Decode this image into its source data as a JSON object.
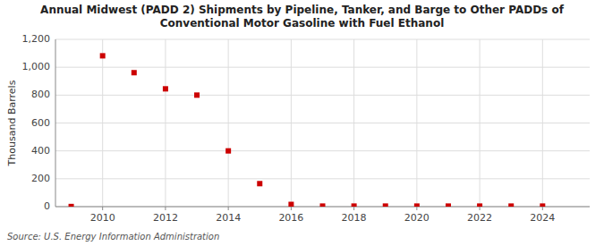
{
  "chart_data": {
    "type": "scatter",
    "title": "Annual Midwest (PADD 2) Shipments by Pipeline, Tanker, and Barge to Other PADDs of\nConventional Motor Gasoline with Fuel Ethanol",
    "y_label": "Thousand Barrels",
    "annotations": [
      "Source: U.S. Energy Information Administration"
    ],
    "x": [
      2009,
      2010,
      2011,
      2012,
      2013,
      2014,
      2015,
      2016,
      2017,
      2018,
      2019,
      2020,
      2021,
      2022,
      2023,
      2024
    ],
    "values": [
      1,
      1082,
      961,
      845,
      800,
      400,
      165,
      16,
      4,
      4,
      4,
      4,
      4,
      4,
      4,
      4
    ],
    "color": "#cc0000",
    "marker": "square",
    "xlim": [
      2008.5,
      2025.5
    ],
    "ylim": [
      0,
      1200
    ],
    "xticks": [
      2010,
      2012,
      2014,
      2016,
      2018,
      2020,
      2022,
      2024
    ],
    "yticks": [
      0,
      200,
      400,
      600,
      800,
      {
        "value": 1000,
        "label": "1,000"
      },
      {
        "value": 1200,
        "label": "1,200"
      }
    ],
    "grid": true
  }
}
